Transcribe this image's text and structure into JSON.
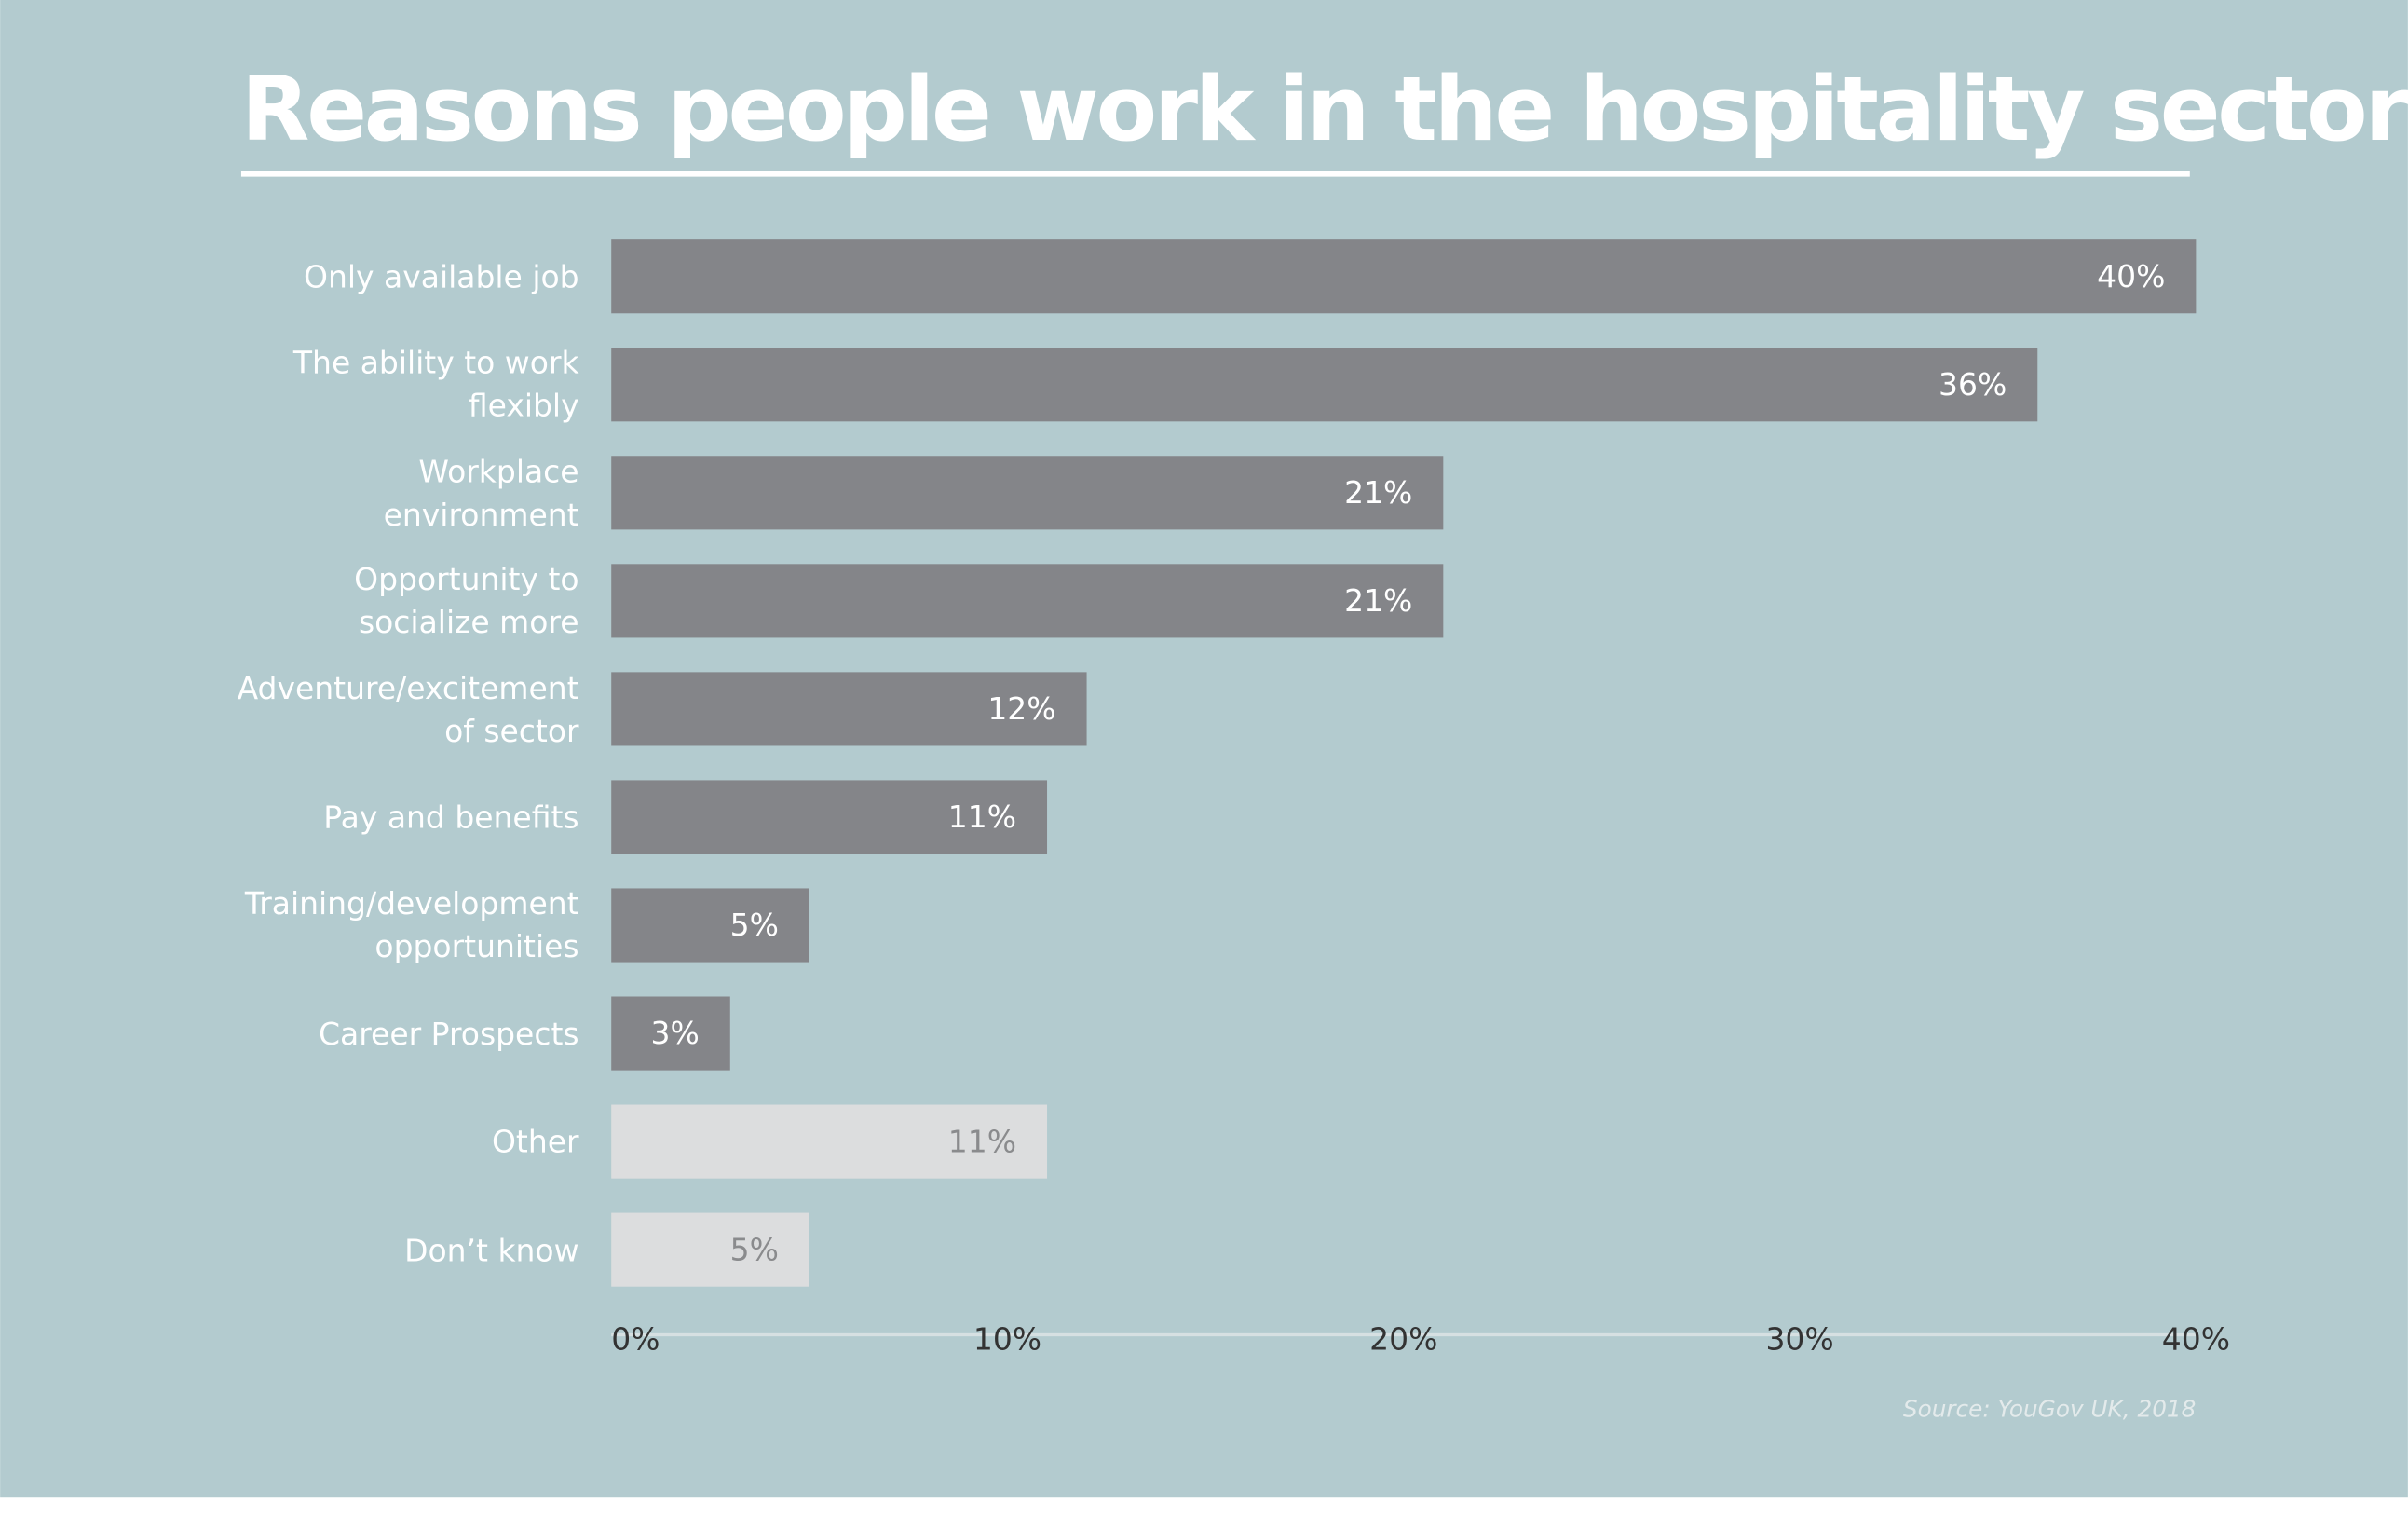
{
  "chart_data": {
    "type": "hbar",
    "title": "Reasons people work in the hospitality sector",
    "categories": [
      "Only available job",
      "The ability to work flexibly",
      "Workplace environment",
      "Opportunity to socialize more",
      "Adventure/excitement of sector",
      "Pay and benefits",
      "Training/development opportunities",
      "Career Prospects",
      "Other",
      "Don’t know"
    ],
    "values": [
      40,
      36,
      21,
      21,
      12,
      11,
      5,
      3,
      11,
      5
    ],
    "value_labels": [
      "40%",
      "36%",
      "21%",
      "21%",
      "12%",
      "11%",
      "5%",
      "3%",
      "11%",
      "5%"
    ],
    "colors": [
      "#848589",
      "#848589",
      "#848589",
      "#848589",
      "#848589",
      "#848589",
      "#848589",
      "#848589",
      "#dcddde",
      "#dcddde"
    ],
    "xlim": [
      0,
      40
    ],
    "xticks": [
      {
        "value": 0,
        "label": "0%"
      },
      {
        "value": 10,
        "label": "10%"
      },
      {
        "value": 20,
        "label": "20%"
      },
      {
        "value": 30,
        "label": "30%"
      },
      {
        "value": 40,
        "label": "40%"
      }
    ],
    "source": "Source: YouGov UK, 2018"
  }
}
